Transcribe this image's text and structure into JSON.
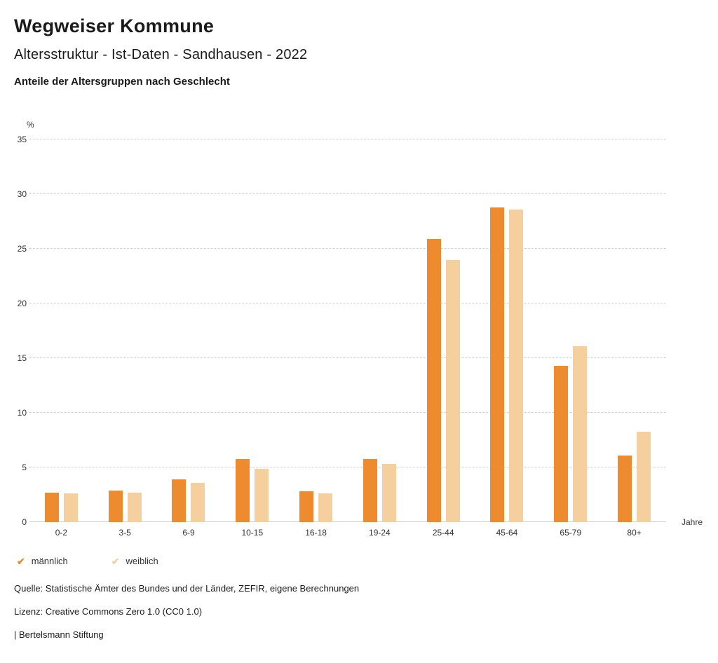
{
  "header": {
    "title": "Wegweiser Kommune",
    "subtitle": "Altersstruktur - Ist-Daten - Sandhausen - 2022",
    "chart_heading": "Anteile der Altersgruppen nach Geschlecht"
  },
  "icons": {
    "legend_check": "✔"
  },
  "chart_data": {
    "type": "bar",
    "title": "Anteile der Altersgruppen nach Geschlecht",
    "categories": [
      "0-2",
      "3-5",
      "6-9",
      "10-15",
      "16-18",
      "19-24",
      "25-44",
      "45-64",
      "65-79",
      "80+"
    ],
    "series": [
      {
        "name": "männlich",
        "color": "#ED8B2E",
        "values": [
          2.7,
          2.9,
          3.9,
          5.8,
          2.8,
          5.8,
          25.9,
          28.8,
          14.3,
          6.1
        ]
      },
      {
        "name": "weiblich",
        "color": "#F6CF9E",
        "values": [
          2.6,
          2.7,
          3.6,
          4.9,
          2.6,
          5.3,
          24.0,
          28.6,
          16.1,
          8.3
        ]
      }
    ],
    "ylabel": "%",
    "xlabel": "Jahre",
    "ylim": [
      0,
      35
    ],
    "yticks": [
      0,
      5,
      10,
      15,
      20,
      25,
      30,
      35
    ],
    "grid": true,
    "legend_position": "bottom"
  },
  "footer": {
    "source": "Quelle: Statistische Ämter des Bundes und der Länder, ZEFIR, eigene Berechnungen",
    "license": "Lizenz: Creative Commons Zero 1.0 (CC0 1.0)",
    "attribution": "| Bertelsmann Stiftung"
  }
}
